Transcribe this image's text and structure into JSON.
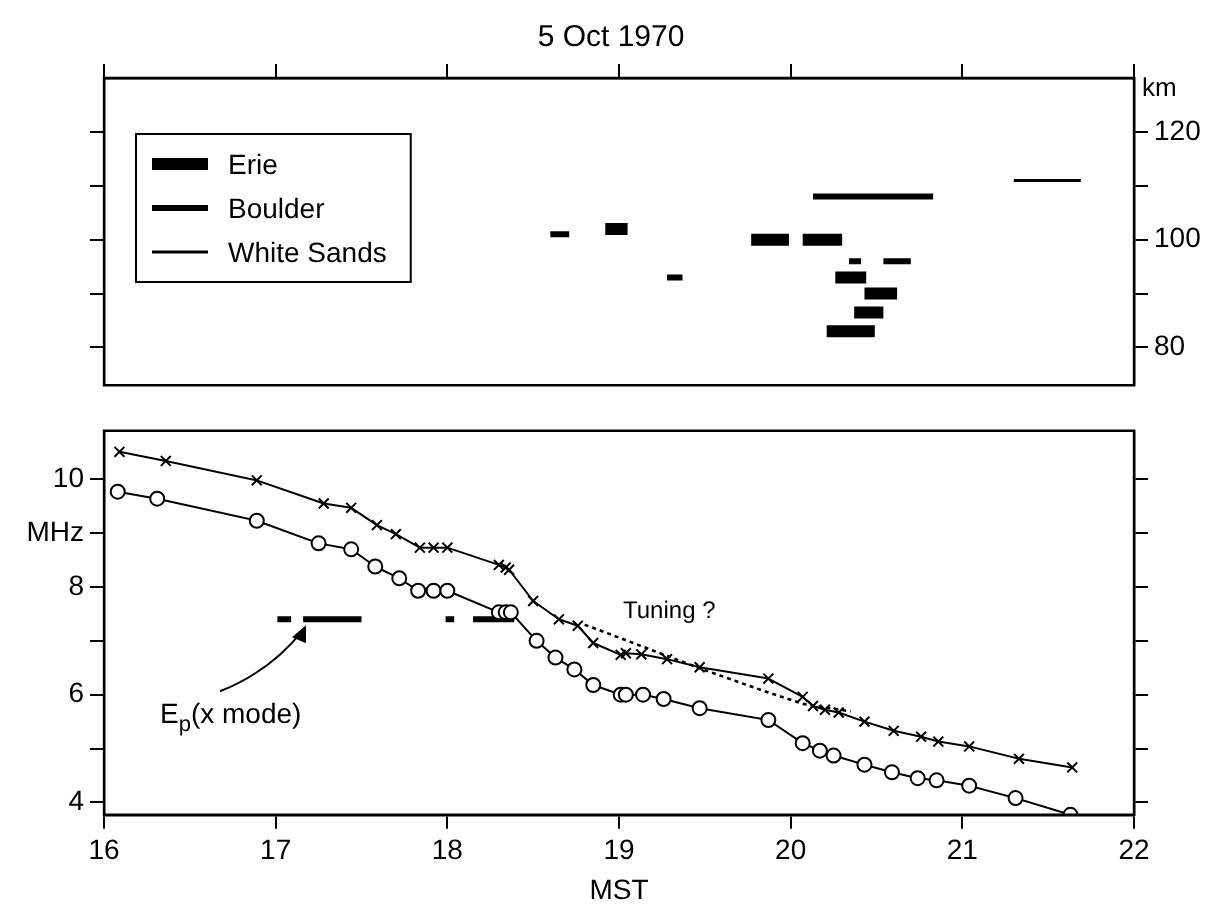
{
  "chart_data": [
    {
      "type": "line",
      "title": "5 Oct 1970",
      "y2label": "km",
      "xlim": [
        16,
        22
      ],
      "xticks": [
        16,
        17,
        18,
        19,
        20,
        21,
        22
      ],
      "tick_labels": "y",
      "y2lim": [
        73,
        130
      ],
      "y2ticks": [
        80,
        {
          "value": 90,
          "label": null
        },
        100,
        {
          "value": 110,
          "label": null
        },
        120
      ],
      "legend": "top left",
      "grid": false,
      "series": [
        {
          "name": "Erie",
          "color": "#000000",
          "axis": "y2",
          "x": [
            18.92,
            19.05,
            null,
            19.77,
            19.99,
            null,
            20.07,
            20.3,
            null,
            20.26,
            20.44,
            null,
            20.43,
            20.62,
            null,
            20.37,
            20.54,
            null,
            20.21,
            20.49
          ],
          "values": [
            102,
            102,
            null,
            100,
            100,
            null,
            100,
            100,
            null,
            93,
            93,
            null,
            90,
            90,
            null,
            86.5,
            86.5,
            null,
            83,
            83
          ]
        },
        {
          "name": "Boulder",
          "color": "#000000",
          "axis": "y2",
          "x": [
            18.6,
            18.71,
            null,
            19.28,
            19.37,
            null,
            20.13,
            20.83,
            null,
            20.34,
            20.41,
            null,
            20.54,
            20.7
          ],
          "values": [
            101,
            101,
            null,
            93,
            93,
            null,
            108,
            108,
            null,
            96,
            96,
            null,
            96,
            96
          ]
        },
        {
          "name": "White Sands",
          "color": "#000000",
          "axis": "y2",
          "x": [
            21.3,
            21.69
          ],
          "values": [
            111,
            111
          ]
        }
      ]
    },
    {
      "type": "line",
      "xlabel": "MST",
      "xlim": [
        16,
        22
      ],
      "xticks": [
        16,
        17,
        18,
        19,
        20,
        21,
        22
      ],
      "ylim": [
        3.77,
        10.9
      ],
      "yticks": [
        4,
        {
          "value": 5,
          "label": null
        },
        6,
        {
          "value": 7,
          "label": null
        },
        8,
        {
          "value": 9,
          "label": "MHz"
        },
        10
      ],
      "grid": false,
      "legend": false,
      "annotations": [
        {
          "text": "E$_{p}$(x mode)",
          "x": 17.2,
          "y": 7.4
        },
        {
          "text": "Tuning ?",
          "x": 19.0,
          "y": 7.06
        }
      ],
      "series": [
        {
          "color": "#000000",
          "marker": "cross",
          "line_style": "solid",
          "x": [
            16.09,
            16.36,
            16.89,
            17.28,
            17.44,
            17.59,
            17.7,
            17.84,
            17.92,
            18.0,
            18.3,
            18.34,
            18.36,
            18.5,
            18.65,
            18.76,
            18.85,
            19.01,
            19.04,
            19.13,
            19.28,
            19.47,
            19.87,
            20.07,
            20.13,
            20.2,
            20.28,
            20.43,
            20.6,
            20.76,
            20.86,
            21.04,
            21.33,
            21.64
          ],
          "values": [
            10.51,
            10.34,
            9.98,
            9.55,
            9.47,
            9.15,
            8.98,
            8.73,
            8.73,
            8.73,
            8.41,
            8.36,
            8.32,
            7.74,
            7.4,
            7.28,
            6.96,
            6.74,
            6.77,
            6.75,
            6.66,
            6.51,
            6.3,
            5.96,
            5.79,
            5.72,
            5.67,
            5.5,
            5.33,
            5.22,
            5.13,
            5.04,
            4.81,
            4.65
          ]
        },
        {
          "color": "#000000",
          "marker": "circle",
          "line_style": "solid",
          "x": [
            16.08,
            16.31,
            16.89,
            17.25,
            17.44,
            17.58,
            17.72,
            17.83,
            17.92,
            18.0,
            18.3,
            18.34,
            18.37,
            18.52,
            18.63,
            18.74,
            18.85,
            19.01,
            19.04,
            19.14,
            19.26,
            19.47,
            19.87,
            20.07,
            20.17,
            20.25,
            20.43,
            20.59,
            20.74,
            20.85,
            21.04,
            21.31,
            21.63
          ],
          "values": [
            9.77,
            9.64,
            9.23,
            8.81,
            8.7,
            8.38,
            8.16,
            7.93,
            7.93,
            7.93,
            7.53,
            7.53,
            7.53,
            7.0,
            6.69,
            6.47,
            6.18,
            6.0,
            6.0,
            6.0,
            5.92,
            5.75,
            5.53,
            5.1,
            4.96,
            4.87,
            4.7,
            4.56,
            4.45,
            4.41,
            4.31,
            4.08,
            3.77
          ]
        },
        {
          "color": "#000000",
          "marker": "none",
          "line_style": "solid",
          "x": [
            17.01,
            17.09,
            null,
            17.16,
            17.5,
            null,
            17.99,
            18.04,
            null,
            18.15,
            18.39
          ],
          "values": [
            7.4,
            7.4,
            null,
            7.4,
            7.4,
            null,
            7.4,
            7.4,
            null,
            7.4,
            7.4
          ]
        },
        {
          "color": "#000000",
          "marker": "none",
          "line_style": "dotted",
          "x": [
            18.8,
            19.0,
            19.47,
            19.87,
            20.07,
            20.35
          ],
          "values": [
            7.3,
            7.06,
            6.49,
            6.04,
            5.83,
            5.69
          ]
        }
      ]
    }
  ]
}
